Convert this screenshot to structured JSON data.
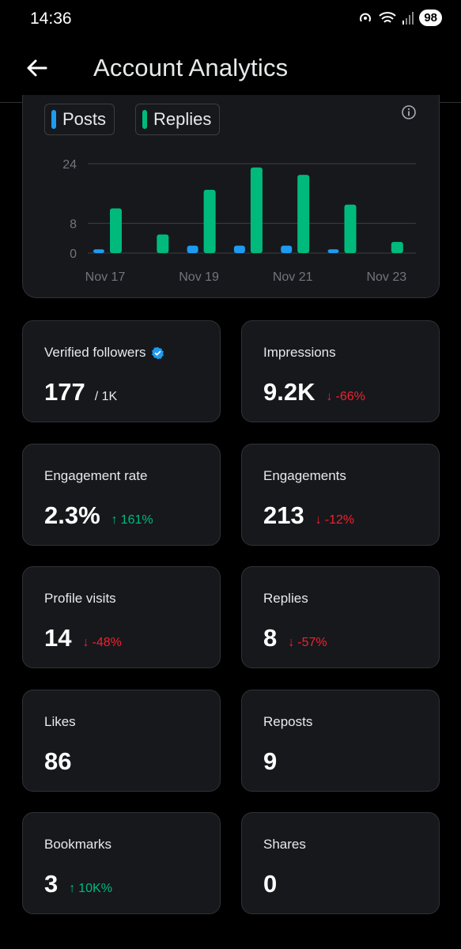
{
  "status_bar": {
    "time": "14:36",
    "battery": "98"
  },
  "header": {
    "title": "Account Analytics"
  },
  "colors": {
    "posts": "#1d9bf0",
    "replies": "#00ba7c",
    "down": "#f4212e",
    "up": "#00ba7c"
  },
  "legend": {
    "posts": "Posts",
    "replies": "Replies"
  },
  "chart_data": {
    "type": "bar",
    "categories": [
      "Nov 17",
      "Nov 18",
      "Nov 19",
      "Nov 20",
      "Nov 21",
      "Nov 22",
      "Nov 23"
    ],
    "x_tick_labels": [
      "Nov 17",
      "Nov 19",
      "Nov 21",
      "Nov 23"
    ],
    "y_ticks": [
      0,
      8,
      24
    ],
    "ylim": [
      0,
      24
    ],
    "series": [
      {
        "name": "Posts",
        "values": [
          1,
          0,
          2,
          2,
          2,
          1,
          0
        ]
      },
      {
        "name": "Replies",
        "values": [
          12,
          5,
          17,
          23,
          21,
          13,
          3
        ]
      }
    ],
    "grid": true,
    "legend_placement": "top-left"
  },
  "metrics": [
    {
      "label": "Verified followers",
      "value": "177",
      "sub": "/ 1K",
      "change": "",
      "direction": ""
    },
    {
      "label": "Impressions",
      "value": "9.2K",
      "sub": "",
      "change": "-66%",
      "direction": "down"
    },
    {
      "label": "Engagement rate",
      "value": "2.3%",
      "sub": "",
      "change": "161%",
      "direction": "up"
    },
    {
      "label": "Engagements",
      "value": "213",
      "sub": "",
      "change": "-12%",
      "direction": "down"
    },
    {
      "label": "Profile visits",
      "value": "14",
      "sub": "",
      "change": "-48%",
      "direction": "down"
    },
    {
      "label": "Replies",
      "value": "8",
      "sub": "",
      "change": "-57%",
      "direction": "down"
    },
    {
      "label": "Likes",
      "value": "86",
      "sub": "",
      "change": "",
      "direction": ""
    },
    {
      "label": "Reposts",
      "value": "9",
      "sub": "",
      "change": "",
      "direction": ""
    },
    {
      "label": "Bookmarks",
      "value": "3",
      "sub": "",
      "change": "10K%",
      "direction": "up"
    },
    {
      "label": "Shares",
      "value": "0",
      "sub": "",
      "change": "",
      "direction": ""
    }
  ]
}
